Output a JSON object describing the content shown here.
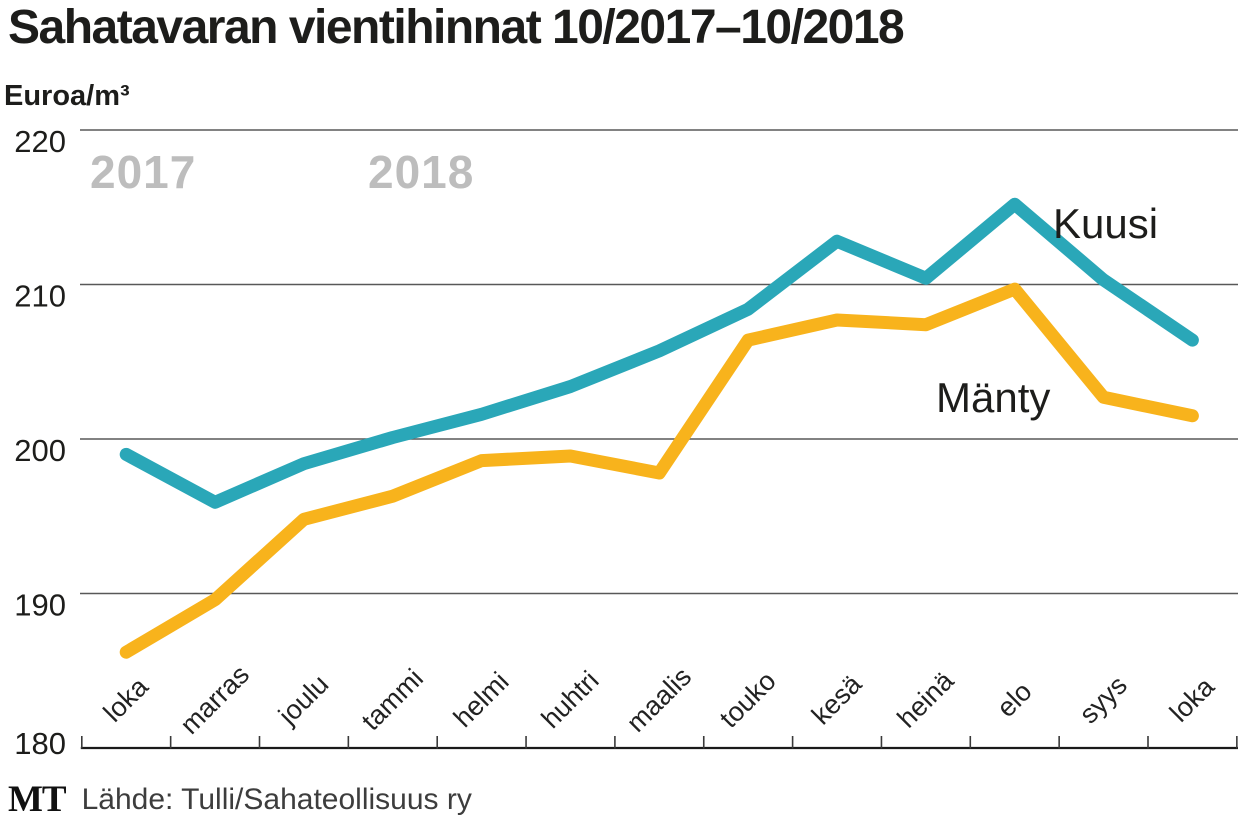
{
  "page": {
    "title": "Sahatavaran vientihinnat 10/2017–10/2018",
    "unit_label": "Euroa/m³"
  },
  "source": {
    "logo": "MT",
    "label": "Lähde: Tulli/Sahateollisuus ry"
  },
  "chart_data": {
    "type": "line",
    "title": "Sahatavaran vientihinnat 10/2017–10/2018",
    "ylabel": "Euroa/m³",
    "xlabel": "",
    "categories": [
      "loka",
      "marras",
      "joulu",
      "tammi",
      "helmi",
      "huhtri",
      "maalis",
      "touko",
      "kesä",
      "heinä",
      "elo",
      "syys",
      "loka"
    ],
    "year_labels": [
      "2017",
      "2018"
    ],
    "yticks": [
      220,
      210,
      200,
      190,
      180
    ],
    "ylim": [
      180,
      220
    ],
    "grid": true,
    "legend_position": "inline-labels-near-lines",
    "series": [
      {
        "name": "Kuusi",
        "color": "#2aa7b8",
        "values": [
          199.0,
          195.9,
          198.4,
          200.1,
          201.6,
          203.4,
          205.7,
          208.4,
          212.8,
          210.4,
          215.2,
          210.3,
          206.4
        ]
      },
      {
        "name": "Mänty",
        "color": "#f8b31c",
        "values": [
          186.2,
          189.6,
          194.8,
          196.3,
          198.6,
          198.9,
          197.8,
          206.4,
          207.7,
          207.4,
          209.7,
          202.7,
          201.5
        ]
      }
    ],
    "colors": {
      "grid": "#585858",
      "axis": "#1a1a1a",
      "tick_label": "#1d1d1b",
      "year_label": "#bdbdbd"
    }
  }
}
